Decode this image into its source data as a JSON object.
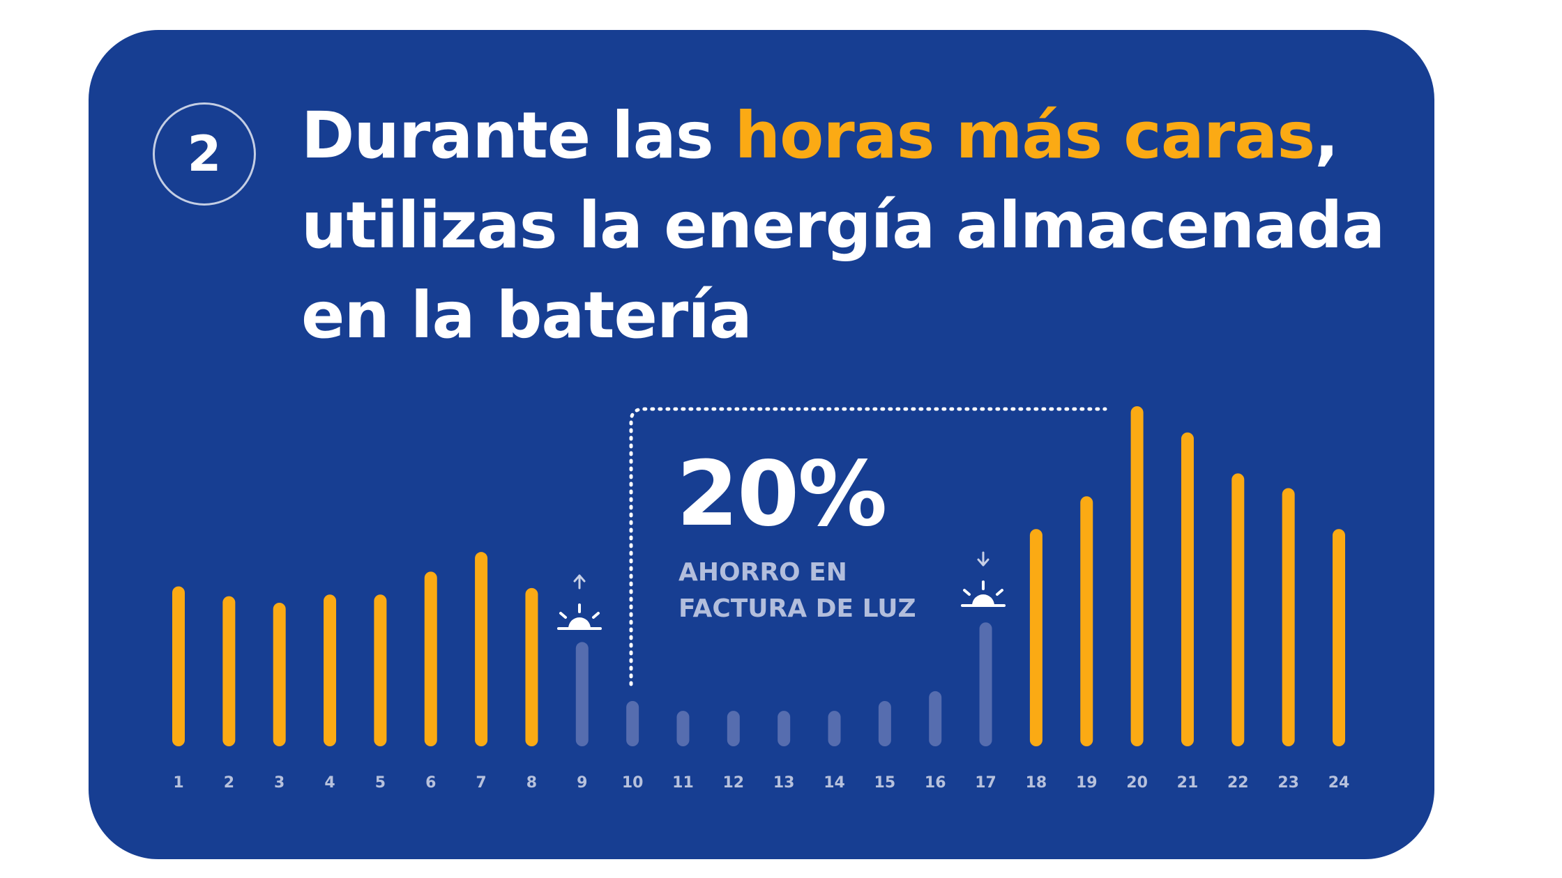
{
  "colors": {
    "card_bg": "#173E92",
    "peak_bar": "#FBAA14",
    "offpeak_bar": "#566DAF",
    "hour_label": "#B7C1DC",
    "text": "#FFFFFF"
  },
  "step_number": "2",
  "headline": {
    "line1_before": "Durante las ",
    "line1_highlight": "horas más caras",
    "line1_after": ",",
    "line2": "utilizas la energía almacenada",
    "line3": "en la batería"
  },
  "savings": {
    "value": "20%",
    "label_line1": "AHORRO EN",
    "label_line2": "FACTURA DE LUZ"
  },
  "icons": {
    "sunrise": "sunrise-icon",
    "sunset": "sunset-icon"
  },
  "chart_data": {
    "type": "bar",
    "categories": [
      "1",
      "2",
      "3",
      "4",
      "5",
      "6",
      "7",
      "8",
      "9",
      "10",
      "11",
      "12",
      "13",
      "14",
      "15",
      "16",
      "17",
      "18",
      "19",
      "20",
      "21",
      "22",
      "23",
      "24"
    ],
    "values": [
      0.45,
      0.42,
      0.4,
      0.425,
      0.425,
      0.495,
      0.555,
      0.445,
      0.28,
      0.1,
      0.07,
      0.07,
      0.07,
      0.07,
      0.1,
      0.13,
      0.34,
      0.625,
      0.725,
      1.0,
      0.92,
      0.795,
      0.75,
      0.625
    ],
    "highlight": [
      "peak",
      "peak",
      "peak",
      "peak",
      "peak",
      "peak",
      "peak",
      "peak",
      "off",
      "off",
      "off",
      "off",
      "off",
      "off",
      "off",
      "off",
      "off",
      "peak",
      "peak",
      "peak",
      "peak",
      "peak",
      "peak",
      "peak"
    ],
    "ylim": [
      0,
      1
    ],
    "grid": false,
    "legend": "none"
  }
}
